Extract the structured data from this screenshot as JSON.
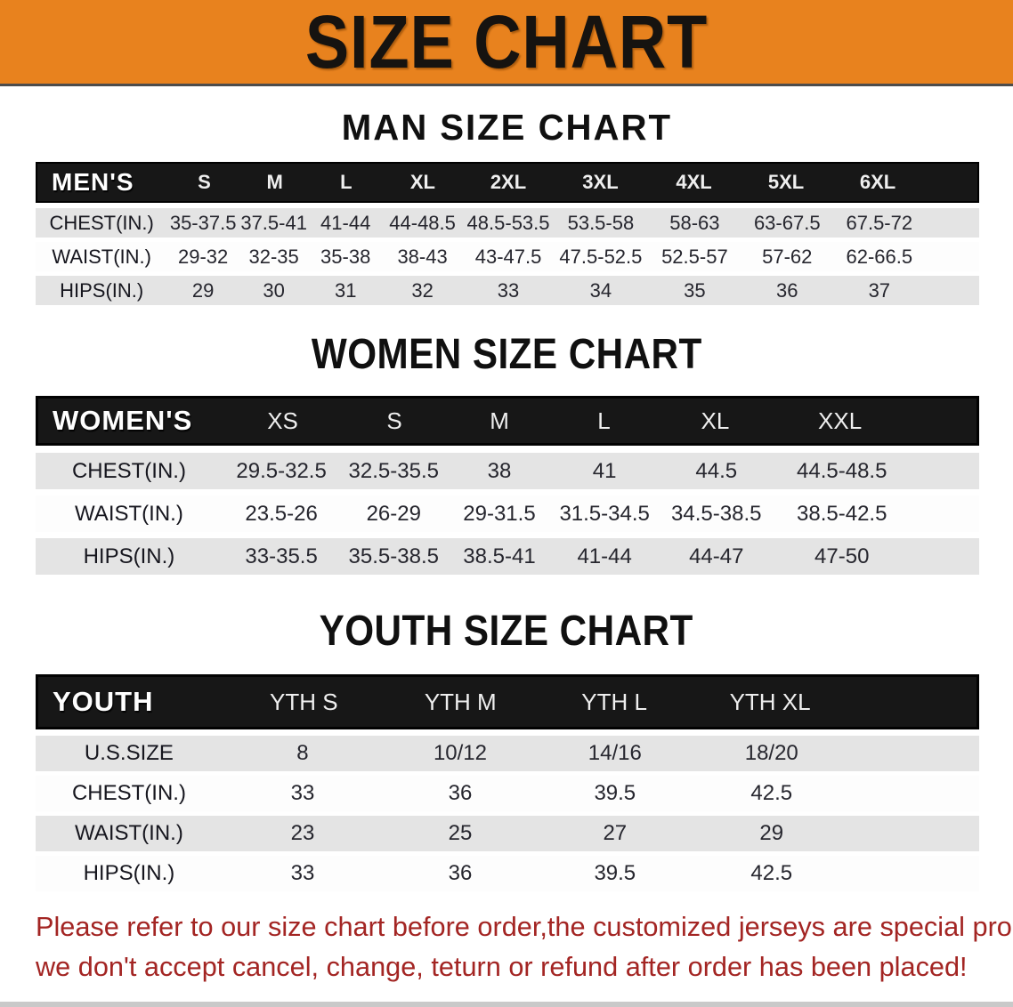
{
  "banner": {
    "title": "SIZE CHART"
  },
  "colors": {
    "banner_bg": "#e8821e",
    "header_bar": "#171717",
    "stripe_gray": "#e4e4e4",
    "disclaimer_red": "#a32523"
  },
  "sections": [
    {
      "heading": "MAN SIZE CHART",
      "corner": "MEN'S",
      "columns": [
        "S",
        "M",
        "L",
        "XL",
        "2XL",
        "3XL",
        "4XL",
        "5XL",
        "6XL"
      ],
      "rows": [
        {
          "label": "CHEST(IN.)",
          "values": [
            "35-37.5",
            "37.5-41",
            "41-44",
            "44-48.5",
            "48.5-53.5",
            "53.5-58",
            "58-63",
            "63-67.5",
            "67.5-72"
          ]
        },
        {
          "label": "WAIST(IN.)",
          "values": [
            "29-32",
            "32-35",
            "35-38",
            "38-43",
            "43-47.5",
            "47.5-52.5",
            "52.5-57",
            "57-62",
            "62-66.5"
          ]
        },
        {
          "label": "HIPS(IN.)",
          "values": [
            "29",
            "30",
            "31",
            "32",
            "33",
            "34",
            "35",
            "36",
            "37"
          ]
        }
      ]
    },
    {
      "heading": "WOMEN SIZE CHART",
      "corner": "WOMEN'S",
      "columns": [
        "XS",
        "S",
        "M",
        "L",
        "XL",
        "XXL"
      ],
      "rows": [
        {
          "label": "CHEST(IN.)",
          "values": [
            "29.5-32.5",
            "32.5-35.5",
            "38",
            "41",
            "44.5",
            "44.5-48.5"
          ]
        },
        {
          "label": "WAIST(IN.)",
          "values": [
            "23.5-26",
            "26-29",
            "29-31.5",
            "31.5-34.5",
            "34.5-38.5",
            "38.5-42.5"
          ]
        },
        {
          "label": "HIPS(IN.)",
          "values": [
            "33-35.5",
            "35.5-38.5",
            "38.5-41",
            "41-44",
            "44-47",
            "47-50"
          ]
        }
      ]
    },
    {
      "heading": "YOUTH SIZE CHART",
      "corner": "YOUTH",
      "columns": [
        "YTH S",
        "YTH M",
        "YTH L",
        "YTH XL"
      ],
      "rows": [
        {
          "label": "U.S.SIZE",
          "values": [
            "8",
            "10/12",
            "14/16",
            "18/20"
          ]
        },
        {
          "label": "CHEST(IN.)",
          "values": [
            "33",
            "36",
            "39.5",
            "42.5"
          ]
        },
        {
          "label": "WAIST(IN.)",
          "values": [
            "23",
            "25",
            "27",
            "29"
          ]
        },
        {
          "label": "HIPS(IN.)",
          "values": [
            "33",
            "36",
            "39.5",
            "42.5"
          ]
        }
      ]
    }
  ],
  "disclaimer": {
    "line1": "Please refer to our size chart before order,the customized jerseys are special products,",
    "line2": "we don't accept cancel, change, teturn or refund after order has been placed!"
  }
}
